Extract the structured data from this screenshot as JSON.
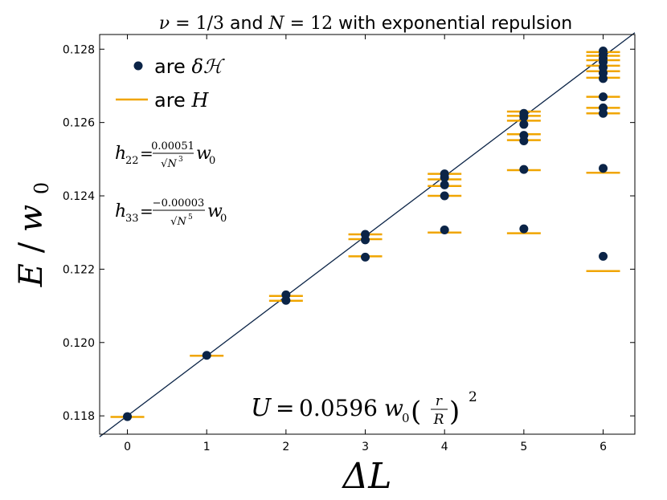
{
  "chart_data": {
    "type": "scatter",
    "title": {
      "nu_symbol": "ν",
      "nu_value": "= 1/3",
      "conj": " and ",
      "n_symbol": "N",
      "n_value": "= 12",
      "rest": " with exponential repulsion"
    },
    "xlabel": "ΔL",
    "ylabel": {
      "E": "E",
      "slash": "/",
      "w": "w",
      "sub": "0"
    },
    "xlim": [
      -0.35,
      6.4
    ],
    "ylim": [
      0.1175,
      0.1284
    ],
    "xticks": [
      0,
      1,
      2,
      3,
      4,
      5,
      6
    ],
    "yticks": [
      0.118,
      0.12,
      0.122,
      0.124,
      0.126,
      0.128
    ],
    "xtick_labels": [
      "0",
      "1",
      "2",
      "3",
      "4",
      "5",
      "6"
    ],
    "ytick_labels": [
      "0.118",
      "0.120",
      "0.122",
      "0.124",
      "0.126",
      "0.128"
    ],
    "legend": {
      "position": "top-left",
      "entries": [
        {
          "prefix": "are ",
          "symbol": "δℋ",
          "marker": "dot"
        },
        {
          "prefix": "are ",
          "symbol": "H",
          "marker": "line"
        }
      ]
    },
    "annotations": {
      "h22": {
        "lhs": "h",
        "lhs_sub": "22",
        "eq": "=",
        "num": "0.00051",
        "den": "√N",
        "den_exp": "3",
        "rhs": "w",
        "rhs_sub": "0"
      },
      "h33": {
        "lhs": "h",
        "lhs_sub": "33",
        "eq": "=",
        "num": "−0.00003",
        "den": "√N",
        "den_exp": "5",
        "rhs": "w",
        "rhs_sub": "0"
      },
      "U": {
        "lhs": "U",
        "eq": "=",
        "coef": "0.0596",
        "w": "w",
        "w_sub": "0",
        "lparen": "(",
        "num": "r",
        "den": "R",
        "rparen": ")",
        "exp": "2"
      }
    },
    "fit_line": {
      "x": [
        -0.35,
        6.4
      ],
      "y": [
        0.11743,
        0.12845
      ]
    },
    "series": [
      {
        "name": "δH",
        "marker": "dot",
        "color": "#0b2447",
        "points": [
          [
            0,
            0.11798
          ],
          [
            1,
            0.11965
          ],
          [
            2,
            0.12115
          ],
          [
            2,
            0.1213
          ],
          [
            3,
            0.12233
          ],
          [
            3,
            0.1228
          ],
          [
            3,
            0.12295
          ],
          [
            4,
            0.12307
          ],
          [
            4,
            0.124
          ],
          [
            4,
            0.1243
          ],
          [
            4,
            0.1245
          ],
          [
            4,
            0.1246
          ],
          [
            5,
            0.1231
          ],
          [
            5,
            0.12472
          ],
          [
            5,
            0.1255
          ],
          [
            5,
            0.12565
          ],
          [
            5,
            0.12595
          ],
          [
            5,
            0.12615
          ],
          [
            5,
            0.12625
          ],
          [
            6,
            0.12235
          ],
          [
            6,
            0.12475
          ],
          [
            6,
            0.12625
          ],
          [
            6,
            0.1264
          ],
          [
            6,
            0.1267
          ],
          [
            6,
            0.1272
          ],
          [
            6,
            0.12735
          ],
          [
            6,
            0.1275
          ],
          [
            6,
            0.12765
          ],
          [
            6,
            0.12775
          ],
          [
            6,
            0.12785
          ],
          [
            6,
            0.12795
          ]
        ]
      },
      {
        "name": "H",
        "marker": "hline",
        "color": "#f0a500",
        "points": [
          [
            0,
            0.11797
          ],
          [
            1,
            0.11964
          ],
          [
            2,
            0.12114
          ],
          [
            2,
            0.12127
          ],
          [
            3,
            0.12235
          ],
          [
            3,
            0.12282
          ],
          [
            3,
            0.12295
          ],
          [
            4,
            0.123
          ],
          [
            4,
            0.124
          ],
          [
            4,
            0.12427
          ],
          [
            4,
            0.12445
          ],
          [
            4,
            0.1246
          ],
          [
            5,
            0.12298
          ],
          [
            5,
            0.1247
          ],
          [
            5,
            0.12552
          ],
          [
            5,
            0.12568
          ],
          [
            5,
            0.12605
          ],
          [
            5,
            0.12618
          ],
          [
            5,
            0.1263
          ],
          [
            6,
            0.12195
          ],
          [
            6,
            0.12463
          ],
          [
            6,
            0.12625
          ],
          [
            6,
            0.1264
          ],
          [
            6,
            0.1267
          ],
          [
            6,
            0.12722
          ],
          [
            6,
            0.1274
          ],
          [
            6,
            0.12755
          ],
          [
            6,
            0.1277
          ],
          [
            6,
            0.12782
          ],
          [
            6,
            0.12792
          ]
        ]
      }
    ]
  }
}
